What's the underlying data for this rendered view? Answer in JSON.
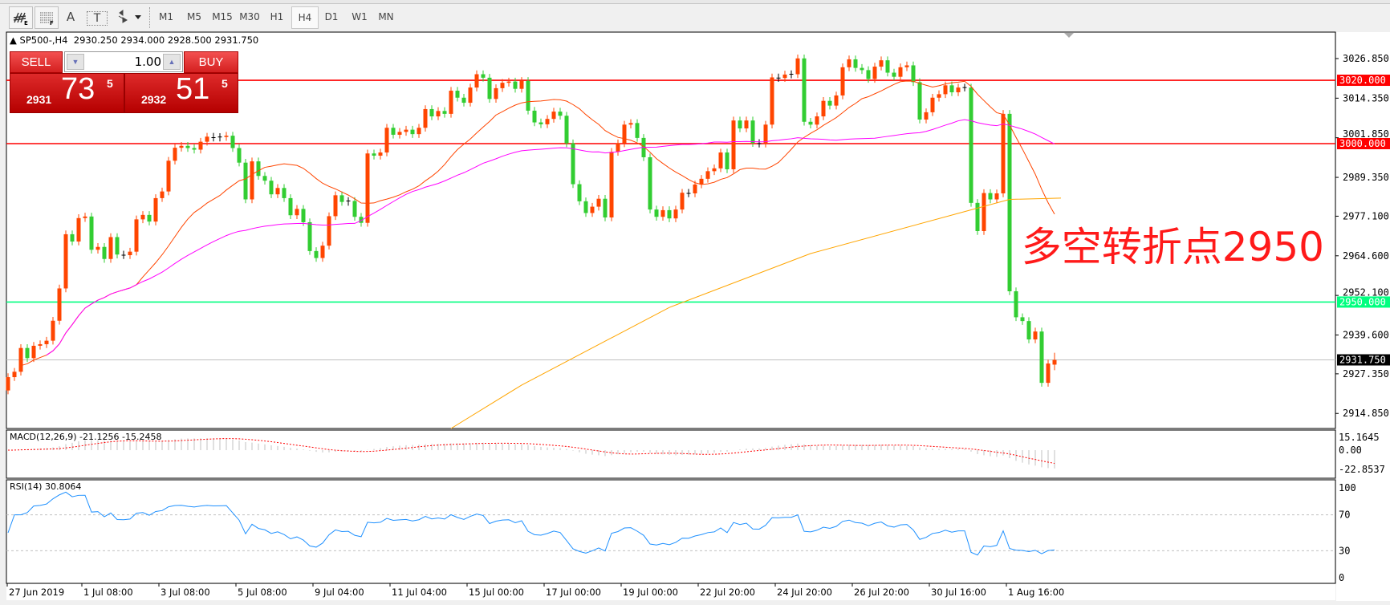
{
  "toolbar": {
    "icons": [
      "expert-advisor-icon",
      "fibonacci-icon",
      "text-icon",
      "text-label-icon",
      "arrows-icon"
    ],
    "text_icon_label": "A",
    "label_icon_label": "T",
    "timeframes": [
      "M1",
      "M5",
      "M15",
      "M30",
      "H1",
      "H4",
      "D1",
      "W1",
      "MN"
    ],
    "active_timeframe": "H4"
  },
  "chart_header": {
    "symbol": "SP500-,H4",
    "ohlc": "2930.250 2934.000 2928.500 2931.750"
  },
  "trade_panel": {
    "sell_label": "SELL",
    "buy_label": "BUY",
    "volume": "1.00",
    "sell_price": {
      "prefix": "2931",
      "big": "73",
      "sup": "5"
    },
    "buy_price": {
      "prefix": "2932",
      "big": "51",
      "sup": "5"
    }
  },
  "annotation": "多空转折点2950",
  "macd_label": "MACD(12,26,9) -21.1256 -15.2458",
  "rsi_label": "RSI(14) 30.8064",
  "colors": {
    "bull": "#ff4500",
    "bear": "#32cd32",
    "ma_fast": "#ff4500",
    "ma_mid": "#ff00ff",
    "ma_slow": "#ffa500",
    "resistance": "#ff0000",
    "pivot": "#00ff7f",
    "macd_signal": "#ff0000",
    "rsi": "#1e90ff"
  },
  "chart_data": {
    "type": "candlestick",
    "symbol": "SP500-",
    "timeframe": "H4",
    "ylim": [
      2910.1,
      3035.2
    ],
    "y_ticks": [
      "3026.850",
      "3014.350",
      "3001.850",
      "2989.350",
      "2977.100",
      "2964.600",
      "2952.100",
      "2939.600",
      "2927.350",
      "2914.850"
    ],
    "x_ticks": [
      "27 Jun 2019",
      "1 Jul 08:00",
      "3 Jul 08:00",
      "5 Jul 08:00",
      "9 Jul 04:00",
      "11 Jul 04:00",
      "15 Jul 00:00",
      "17 Jul 00:00",
      "19 Jul 00:00",
      "22 Jul 20:00",
      "24 Jul 20:00",
      "26 Jul 20:00",
      "30 Jul 16:00",
      "1 Aug 16:00"
    ],
    "first_open": 2922.1,
    "last_open": 2930.25,
    "last_high": 2934.0,
    "last_low": 2928.5,
    "closes": [
      2926.3,
      2928,
      2935.5,
      2932.3,
      2936.2,
      2936.7,
      2937.8,
      2944.1,
      2954.3,
      2971.4,
      2969.1,
      2976.5,
      2977,
      2966.5,
      2967.4,
      2963.6,
      2970.5,
      2965,
      2964.8,
      2965.9,
      2976.1,
      2977.5,
      2975.4,
      2982.8,
      2984.9,
      2994.6,
      2998.7,
      2999.3,
      2998.6,
      2998.1,
      3000.6,
      3002.2,
      3001.9,
      3002.1,
      3002.5,
      2998.6,
      2994,
      2982.4,
      2994.4,
      2989.8,
      2988.3,
      2984,
      2986,
      2982.8,
      2977.4,
      2979.4,
      2975.2,
      2966.1,
      2963.9,
      2967.8,
      2977.1,
      2983.7,
      2981.6,
      2981.9,
      2976.9,
      2975,
      2996.9,
      2996.2,
      2997.2,
      3005,
      3002.8,
      3003.7,
      3004.4,
      3003,
      3005,
      3010.9,
      3008.6,
      3010.3,
      3009.4,
      3016.7,
      3014.5,
      3012.9,
      3017.7,
      3021.9,
      3020.8,
      3014.1,
      3017.5,
      3019.2,
      3019.6,
      3017.3,
      3019.8,
      3010.4,
      3006.7,
      3006.1,
      3007.8,
      3010.1,
      3008.8,
      3000.1,
      2987.2,
      2981.8,
      2978.1,
      2980.1,
      2982.6,
      2976.7,
      2997.4,
      3000.1,
      3006,
      3006.5,
      3001.8,
      2995.7,
      2979.2,
      2976.9,
      2979,
      2976.4,
      2979.2,
      2984.5,
      2984.3,
      2987.1,
      2988.9,
      2991.3,
      2992.2,
      2997.2,
      2991.9,
      3007.3,
      3004.8,
      3007.3,
      3000.2,
      3000,
      3006,
      3020.9,
      3020.7,
      3021.8,
      3021.9,
      3026.9,
      3006.9,
      3006,
      3008.6,
      3013.5,
      3012,
      3015.2,
      3024.1,
      3026.6,
      3023.9,
      3023.2,
      3020.4,
      3024.3,
      3026.3,
      3022.4,
      3021.1,
      3024.1,
      3024.7,
      3019.4,
      3007.6,
      3009.9,
      3014.5,
      3015.6,
      3018.4,
      3016.2,
      3017.7,
      3017.7,
      2981.3,
      2972.4,
      2984.4,
      2982.4,
      2984.3,
      3009.4,
      2953.4,
      2945.2,
      2944,
      2938.2,
      2940.7,
      2924.5,
      2930.6,
      2931.75
    ],
    "ma_slow_points": [
      [
        69,
        2909
      ],
      [
        80,
        2923.8
      ],
      [
        103,
        2948.3
      ],
      [
        125,
        2965.3
      ],
      [
        148,
        2978
      ],
      [
        156,
        2982.4
      ],
      [
        164,
        2982.8
      ]
    ],
    "horizontal_lines": [
      {
        "price": 3020.0,
        "label": "3020.000",
        "kind": "resistance"
      },
      {
        "price": 3000.0,
        "label": "3000.000",
        "kind": "resistance"
      },
      {
        "price": 2950.0,
        "label": "2950.000",
        "kind": "pivot"
      },
      {
        "price": 2931.75,
        "label": "2931.750",
        "kind": "bid"
      }
    ],
    "macd": {
      "ticks": [
        "15.1645",
        "0.00",
        "-22.8537"
      ],
      "main": -21.1256,
      "signal": -15.2458
    },
    "rsi": {
      "ticks": [
        "100",
        "70",
        "30",
        "0"
      ],
      "value": 30.8064,
      "levels": [
        70,
        30
      ]
    }
  }
}
